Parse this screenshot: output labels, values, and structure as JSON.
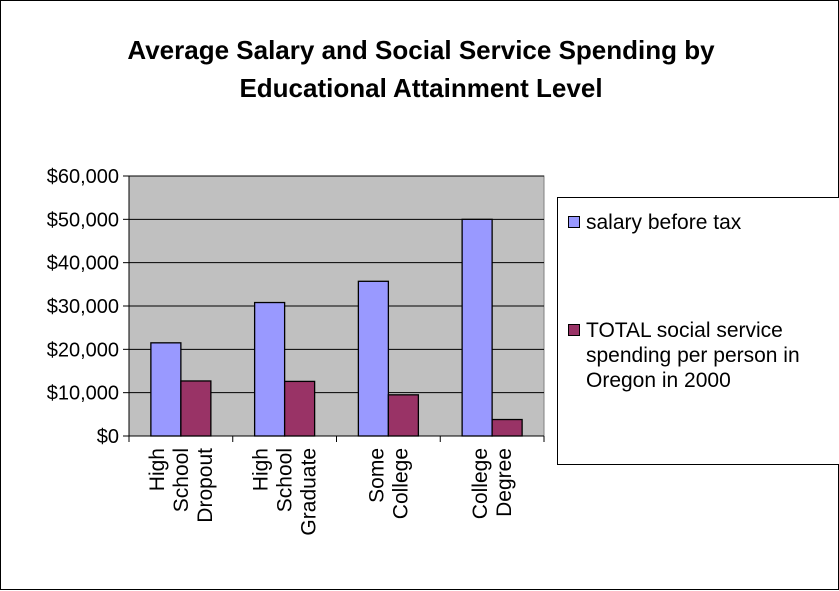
{
  "chart_data": {
    "type": "bar",
    "title_lines": [
      "Average Salary and Social Service Spending by",
      "Educational Attainment Level"
    ],
    "categories": [
      [
        "High",
        "School",
        "Dropout"
      ],
      [
        "High",
        "School",
        "Graduate"
      ],
      [
        "Some",
        "College"
      ],
      [
        "College",
        "Degree"
      ]
    ],
    "series": [
      {
        "name": "salary before tax",
        "color": "#9999ff",
        "values": [
          21500,
          30800,
          35700,
          50000
        ]
      },
      {
        "name": "TOTAL social service spending per person in Oregon in 2000",
        "color": "#993366",
        "values": [
          12700,
          12600,
          9500,
          3800
        ]
      }
    ],
    "legend_lines": [
      [
        "salary before tax"
      ],
      [
        "TOTAL social service",
        "spending per person in",
        "Oregon in 2000"
      ]
    ],
    "ylim": [
      0,
      60000
    ],
    "yticks": [
      0,
      10000,
      20000,
      30000,
      40000,
      50000,
      60000
    ],
    "ytick_labels": [
      "$0",
      "$10,000",
      "$20,000",
      "$30,000",
      "$40,000",
      "$50,000",
      "$60,000"
    ],
    "plot_background": "#c0c0c0",
    "grid": true,
    "legend_position": "right"
  }
}
